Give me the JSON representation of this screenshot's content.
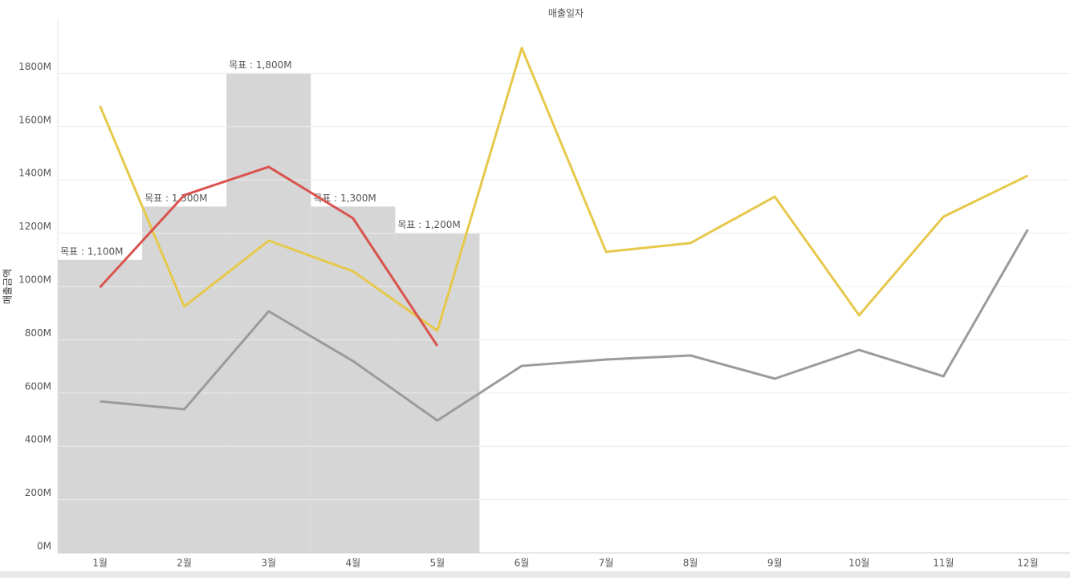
{
  "chart_data": {
    "type": "line",
    "title": "매출일자",
    "y_label": "매출금액",
    "categories": [
      "1월",
      "2월",
      "3월",
      "4월",
      "5월",
      "6월",
      "7월",
      "8월",
      "9월",
      "10월",
      "11월",
      "12월"
    ],
    "ylim": [
      0,
      2000
    ],
    "yticks": [
      {
        "value": 0,
        "label": "0M"
      },
      {
        "value": 200,
        "label": "200M"
      },
      {
        "value": 400,
        "label": "400M"
      },
      {
        "value": 600,
        "label": "600M"
      },
      {
        "value": 800,
        "label": "800M"
      },
      {
        "value": 1000,
        "label": "1000M"
      },
      {
        "value": 1200,
        "label": "1200M"
      },
      {
        "value": 1400,
        "label": "1400M"
      },
      {
        "value": 1600,
        "label": "1600M"
      },
      {
        "value": 1800,
        "label": "1800M"
      }
    ],
    "grid": true,
    "bars": {
      "color": "#d6d6d6",
      "values": [
        1100,
        1300,
        1800,
        1300,
        1200,
        null,
        null,
        null,
        null,
        null,
        null,
        null
      ],
      "value_labels": [
        "목표 : 1,100M",
        "목표 : 1,300M",
        "목표 : 1,800M",
        "목표 : 1,300M",
        "목표 : 1,200M",
        null,
        null,
        null,
        null,
        null,
        null,
        null
      ]
    },
    "series": [
      {
        "color": "#e6c84b",
        "values": [
          1678,
          925,
          1172,
          1057,
          834,
          1895,
          1130,
          1163,
          1337,
          892,
          1262,
          1416
        ]
      },
      {
        "color": "#d9534f",
        "values": [
          997,
          1343,
          1449,
          1256,
          777,
          null,
          null,
          null,
          null,
          null,
          null,
          null
        ]
      },
      {
        "color": "#9b9a9f",
        "values": [
          569,
          539,
          907,
          720,
          497,
          702,
          726,
          741,
          654,
          762,
          663,
          1214
        ]
      }
    ]
  }
}
